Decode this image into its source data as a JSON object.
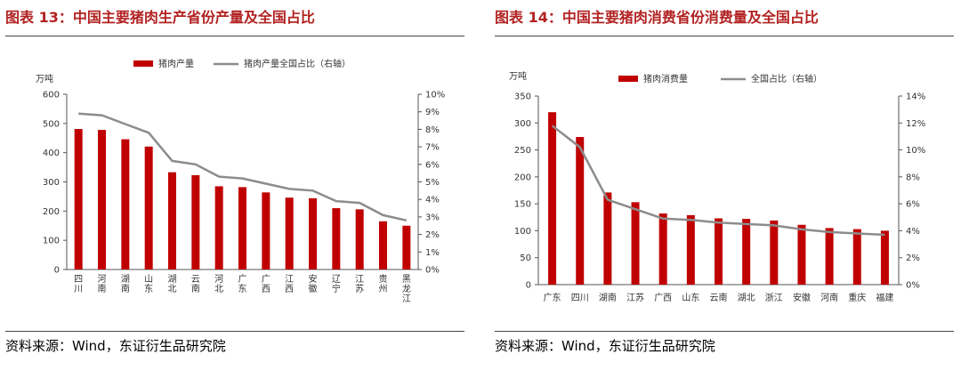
{
  "figures": [
    {
      "title": "图表 13：中国主要猪肉生产省份产量及全国占比",
      "source": "资料来源：Wind，东证衍生品研究院"
    },
    {
      "title": "图表 14：中国主要猪肉消费省份消费量及全国占比",
      "source": "资料来源：Wind，东证衍生品研究院"
    }
  ],
  "chart_data": [
    {
      "type": "bar",
      "unit_label": "万吨",
      "categories": [
        "四川",
        "河南",
        "湖南",
        "山东",
        "湖北",
        "云南",
        "河北",
        "广东",
        "广西",
        "江西",
        "安徽",
        "辽宁",
        "江苏",
        "贵州",
        "黑龙江"
      ],
      "series": [
        {
          "name": "猪肉产量",
          "type": "bar",
          "axis": "left",
          "color": "#c00000",
          "values": [
            481,
            478,
            446,
            421,
            333,
            323,
            285,
            282,
            264,
            246,
            244,
            210,
            206,
            165,
            150
          ]
        },
        {
          "name": "猪肉产量全国占比（右轴）",
          "type": "line",
          "axis": "right",
          "color": "#8c8c8c",
          "values": [
            8.9,
            8.8,
            8.3,
            7.8,
            6.2,
            6.0,
            5.3,
            5.2,
            4.9,
            4.6,
            4.5,
            3.9,
            3.8,
            3.1,
            2.8
          ]
        }
      ],
      "y_left": {
        "min": 0,
        "max": 600,
        "ticks": [
          "0",
          "100",
          "200",
          "300",
          "400",
          "500",
          "600"
        ]
      },
      "y_right": {
        "min": 0,
        "max": 10,
        "ticks": [
          "0%",
          "1%",
          "2%",
          "3%",
          "4%",
          "5%",
          "6%",
          "7%",
          "8%",
          "9%",
          "10%"
        ]
      },
      "legend_position": "top"
    },
    {
      "type": "bar",
      "unit_label": "万吨",
      "categories": [
        "广东",
        "四川",
        "湖南",
        "江苏",
        "广西",
        "山东",
        "云南",
        "湖北",
        "浙江",
        "安徽",
        "河南",
        "重庆",
        "福建"
      ],
      "series": [
        {
          "name": "猪肉消费量",
          "type": "bar",
          "axis": "left",
          "color": "#c00000",
          "values": [
            320,
            274,
            171,
            153,
            132,
            129,
            123,
            122,
            119,
            111,
            105,
            103,
            100
          ]
        },
        {
          "name": "全国占比（右轴）",
          "type": "line",
          "axis": "right",
          "color": "#8c8c8c",
          "values": [
            11.8,
            10.2,
            6.3,
            5.6,
            4.9,
            4.8,
            4.6,
            4.5,
            4.4,
            4.1,
            3.9,
            3.8,
            3.7
          ]
        }
      ],
      "y_left": {
        "min": 0,
        "max": 350,
        "ticks": [
          "0",
          "50",
          "100",
          "150",
          "200",
          "250",
          "300",
          "350"
        ]
      },
      "y_right": {
        "min": 0,
        "max": 14,
        "ticks": [
          "0%",
          "2%",
          "4%",
          "6%",
          "8%",
          "10%",
          "12%",
          "14%"
        ]
      },
      "legend_position": "top"
    }
  ]
}
